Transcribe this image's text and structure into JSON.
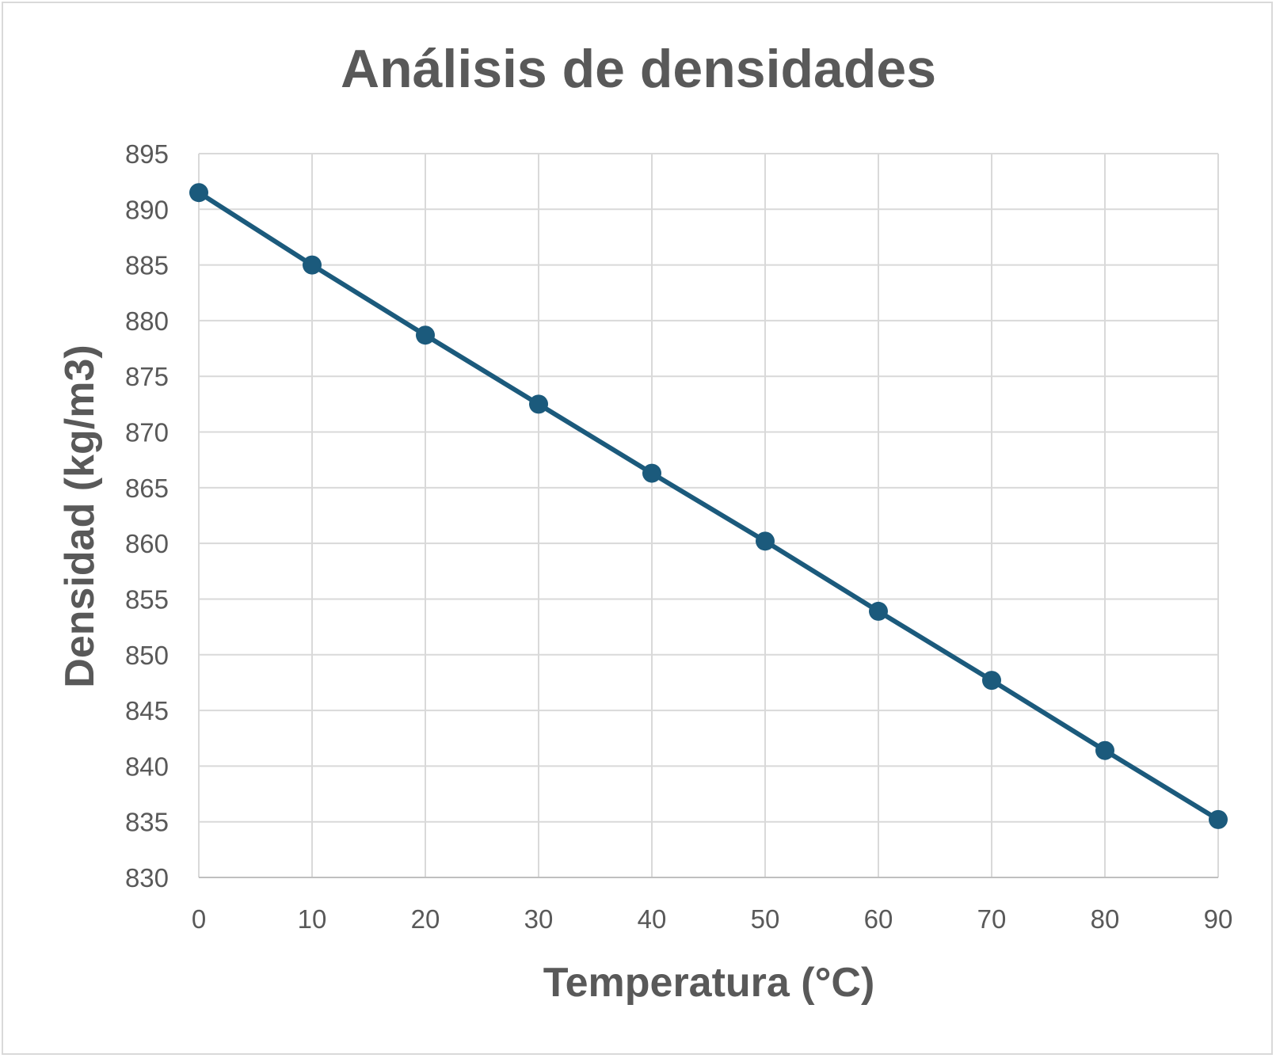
{
  "chart_data": {
    "type": "line",
    "title": "Análisis de densidades",
    "xlabel": "Temperatura (°C)",
    "ylabel": "Densidad (kg/m3)",
    "xlim": [
      0,
      90
    ],
    "ylim": [
      830,
      895
    ],
    "x_ticks": [
      "0",
      "10",
      "20",
      "30",
      "40",
      "50",
      "60",
      "70",
      "80",
      "90"
    ],
    "y_ticks": [
      "830",
      "835",
      "840",
      "845",
      "850",
      "855",
      "860",
      "865",
      "870",
      "875",
      "880",
      "885",
      "890",
      "895"
    ],
    "grid": true,
    "legend": "none",
    "marker": "circle",
    "series": [
      {
        "color": "#1b5a7c",
        "x": [
          0,
          10,
          20,
          30,
          40,
          50,
          60,
          70,
          80,
          90
        ],
        "y": [
          891.5,
          885.0,
          878.7,
          872.5,
          866.3,
          860.2,
          853.9,
          847.7,
          841.4,
          835.2
        ]
      }
    ]
  }
}
